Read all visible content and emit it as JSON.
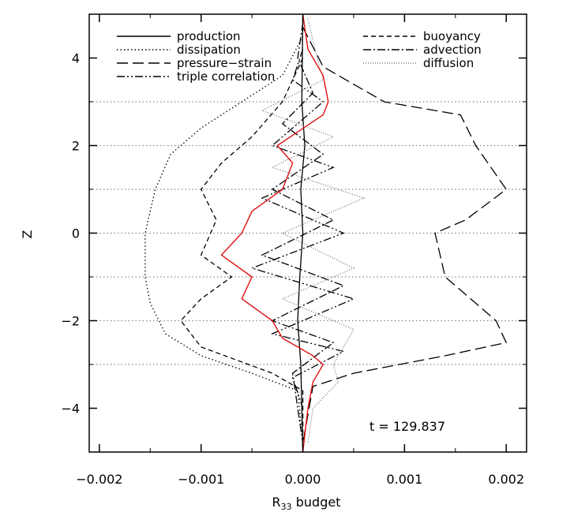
{
  "chart_data": {
    "type": "line",
    "xlabel": "R",
    "xlabel_sub": "33",
    "xlabel_suffix": " budget",
    "ylabel": "Z",
    "xlim": [
      -0.0021,
      0.0022
    ],
    "ylim": [
      -5,
      5
    ],
    "x_ticks": [
      -0.002,
      -0.001,
      0.0,
      0.001,
      0.002
    ],
    "x_tick_labels": [
      "−0.002",
      "−0.001",
      "0.000",
      "0.001",
      "0.002"
    ],
    "y_ticks": [
      -4,
      -2,
      0,
      2,
      4
    ],
    "y_tick_labels": [
      "−4",
      "−2",
      "0",
      "2",
      "4"
    ],
    "hgrid": [
      -3,
      -2,
      -1,
      0,
      1,
      2,
      3
    ],
    "annotation": "t = 129.837",
    "legend_position": "top",
    "series": [
      {
        "name": "production",
        "dash": "solid",
        "color": "#000000",
        "points": [
          [
            0.0,
            5.0
          ],
          [
            -1e-05,
            3.0
          ],
          [
            2e-05,
            2.0
          ],
          [
            -2e-05,
            1.0
          ],
          [
            0.0,
            0.0
          ],
          [
            -3e-05,
            -1.0
          ],
          [
            -5e-05,
            -2.0
          ],
          [
            -2e-05,
            -3.0
          ],
          [
            0.0,
            -5.0
          ]
        ]
      },
      {
        "name": "dissipation",
        "dash": "dotted",
        "color": "#000000",
        "points": [
          [
            0.0,
            4.5
          ],
          [
            -0.0002,
            3.6
          ],
          [
            -0.0006,
            3.0
          ],
          [
            -0.001,
            2.4
          ],
          [
            -0.0013,
            1.8
          ],
          [
            -0.00145,
            1.0
          ],
          [
            -0.00155,
            0.0
          ],
          [
            -0.00155,
            -1.0
          ],
          [
            -0.0015,
            -1.6
          ],
          [
            -0.00135,
            -2.3
          ],
          [
            -0.001,
            -2.8
          ],
          [
            -0.0005,
            -3.2
          ],
          [
            -5e-05,
            -3.6
          ],
          [
            0.0,
            -4.8
          ]
        ]
      },
      {
        "name": "pressure−strain",
        "dash": "longdash",
        "color": "#000000",
        "points": [
          [
            0.0,
            4.7
          ],
          [
            0.0002,
            3.8
          ],
          [
            0.0008,
            3.0
          ],
          [
            0.00155,
            2.7
          ],
          [
            0.0017,
            2.0
          ],
          [
            0.002,
            1.0
          ],
          [
            0.0016,
            0.3
          ],
          [
            0.0013,
            0.0
          ],
          [
            0.0014,
            -1.0
          ],
          [
            0.0019,
            -2.0
          ],
          [
            0.002,
            -2.5
          ],
          [
            0.0014,
            -2.8
          ],
          [
            0.0005,
            -3.2
          ],
          [
            0.0001,
            -3.5
          ],
          [
            0.0,
            -4.8
          ]
        ]
      },
      {
        "name": "triple correlation",
        "dash": "dashdotdot",
        "color": "#000000",
        "points": [
          [
            0.0,
            4.2
          ],
          [
            -0.0001,
            3.5
          ],
          [
            0.0002,
            3.0
          ],
          [
            -0.0003,
            2.0
          ],
          [
            0.0003,
            1.5
          ],
          [
            -0.0004,
            0.8
          ],
          [
            0.0004,
            0.0
          ],
          [
            -0.0005,
            -0.8
          ],
          [
            0.0005,
            -1.5
          ],
          [
            -0.0003,
            -2.3
          ],
          [
            0.0004,
            -2.7
          ],
          [
            -0.0001,
            -3.3
          ],
          [
            0.0,
            -4.0
          ]
        ]
      },
      {
        "name": "buoyancy",
        "dash": "dashed",
        "color": "#000000",
        "points": [
          [
            0.0,
            4.0
          ],
          [
            -0.0002,
            3.0
          ],
          [
            -0.0005,
            2.2
          ],
          [
            -0.0008,
            1.6
          ],
          [
            -0.001,
            1.0
          ],
          [
            -0.00085,
            0.3
          ],
          [
            -0.001,
            -0.5
          ],
          [
            -0.0007,
            -1.0
          ],
          [
            -0.001,
            -1.5
          ],
          [
            -0.0012,
            -2.0
          ],
          [
            -0.001,
            -2.6
          ],
          [
            -0.0003,
            -3.2
          ],
          [
            0.0,
            -3.6
          ],
          [
            0.0,
            -4.8
          ]
        ]
      },
      {
        "name": "advection",
        "dash": "dashdot",
        "color": "#000000",
        "points": [
          [
            0.0,
            4.8
          ],
          [
            -5e-05,
            4.0
          ],
          [
            0.0001,
            3.2
          ],
          [
            -0.0002,
            2.5
          ],
          [
            0.0002,
            1.8
          ],
          [
            -0.0003,
            1.0
          ],
          [
            0.0003,
            0.3
          ],
          [
            -0.0004,
            -0.5
          ],
          [
            0.0004,
            -1.2
          ],
          [
            -0.0003,
            -2.0
          ],
          [
            0.0003,
            -2.5
          ],
          [
            -0.0001,
            -3.2
          ],
          [
            -5e-05,
            -4.0
          ],
          [
            0.0,
            -4.8
          ]
        ]
      },
      {
        "name": "diffusion",
        "dash": "finedot",
        "color": "#777777",
        "points": [
          [
            5e-05,
            4.9
          ],
          [
            0.00012,
            4.2
          ],
          [
            0.0002,
            3.5
          ],
          [
            -0.0004,
            2.8
          ],
          [
            0.0003,
            2.2
          ],
          [
            -0.0003,
            1.5
          ],
          [
            0.0006,
            0.8
          ],
          [
            -0.0002,
            0.0
          ],
          [
            0.0005,
            -0.8
          ],
          [
            -0.0002,
            -1.5
          ],
          [
            0.0005,
            -2.2
          ],
          [
            0.0003,
            -3.0
          ],
          [
            0.00035,
            -3.4
          ],
          [
            0.0001,
            -4.0
          ],
          [
            5e-05,
            -4.8
          ]
        ]
      },
      {
        "name": "",
        "dash": "solid",
        "color": "#e01010",
        "points": [
          [
            0.0,
            5.0
          ],
          [
            5e-05,
            4.2
          ],
          [
            0.0002,
            3.6
          ],
          [
            0.00025,
            3.0
          ],
          [
            0.0002,
            2.7
          ],
          [
            -0.00025,
            2.0
          ],
          [
            -0.0001,
            1.6
          ],
          [
            -0.0002,
            1.0
          ],
          [
            -0.0005,
            0.5
          ],
          [
            -0.0006,
            0.0
          ],
          [
            -0.0008,
            -0.5
          ],
          [
            -0.0005,
            -1.0
          ],
          [
            -0.0006,
            -1.5
          ],
          [
            -0.0003,
            -2.0
          ],
          [
            -0.0002,
            -2.4
          ],
          [
            0.0001,
            -2.8
          ],
          [
            0.0002,
            -3.0
          ],
          [
            0.0001,
            -3.4
          ],
          [
            5e-05,
            -4.0
          ],
          [
            0.0,
            -5.0
          ]
        ]
      }
    ]
  }
}
